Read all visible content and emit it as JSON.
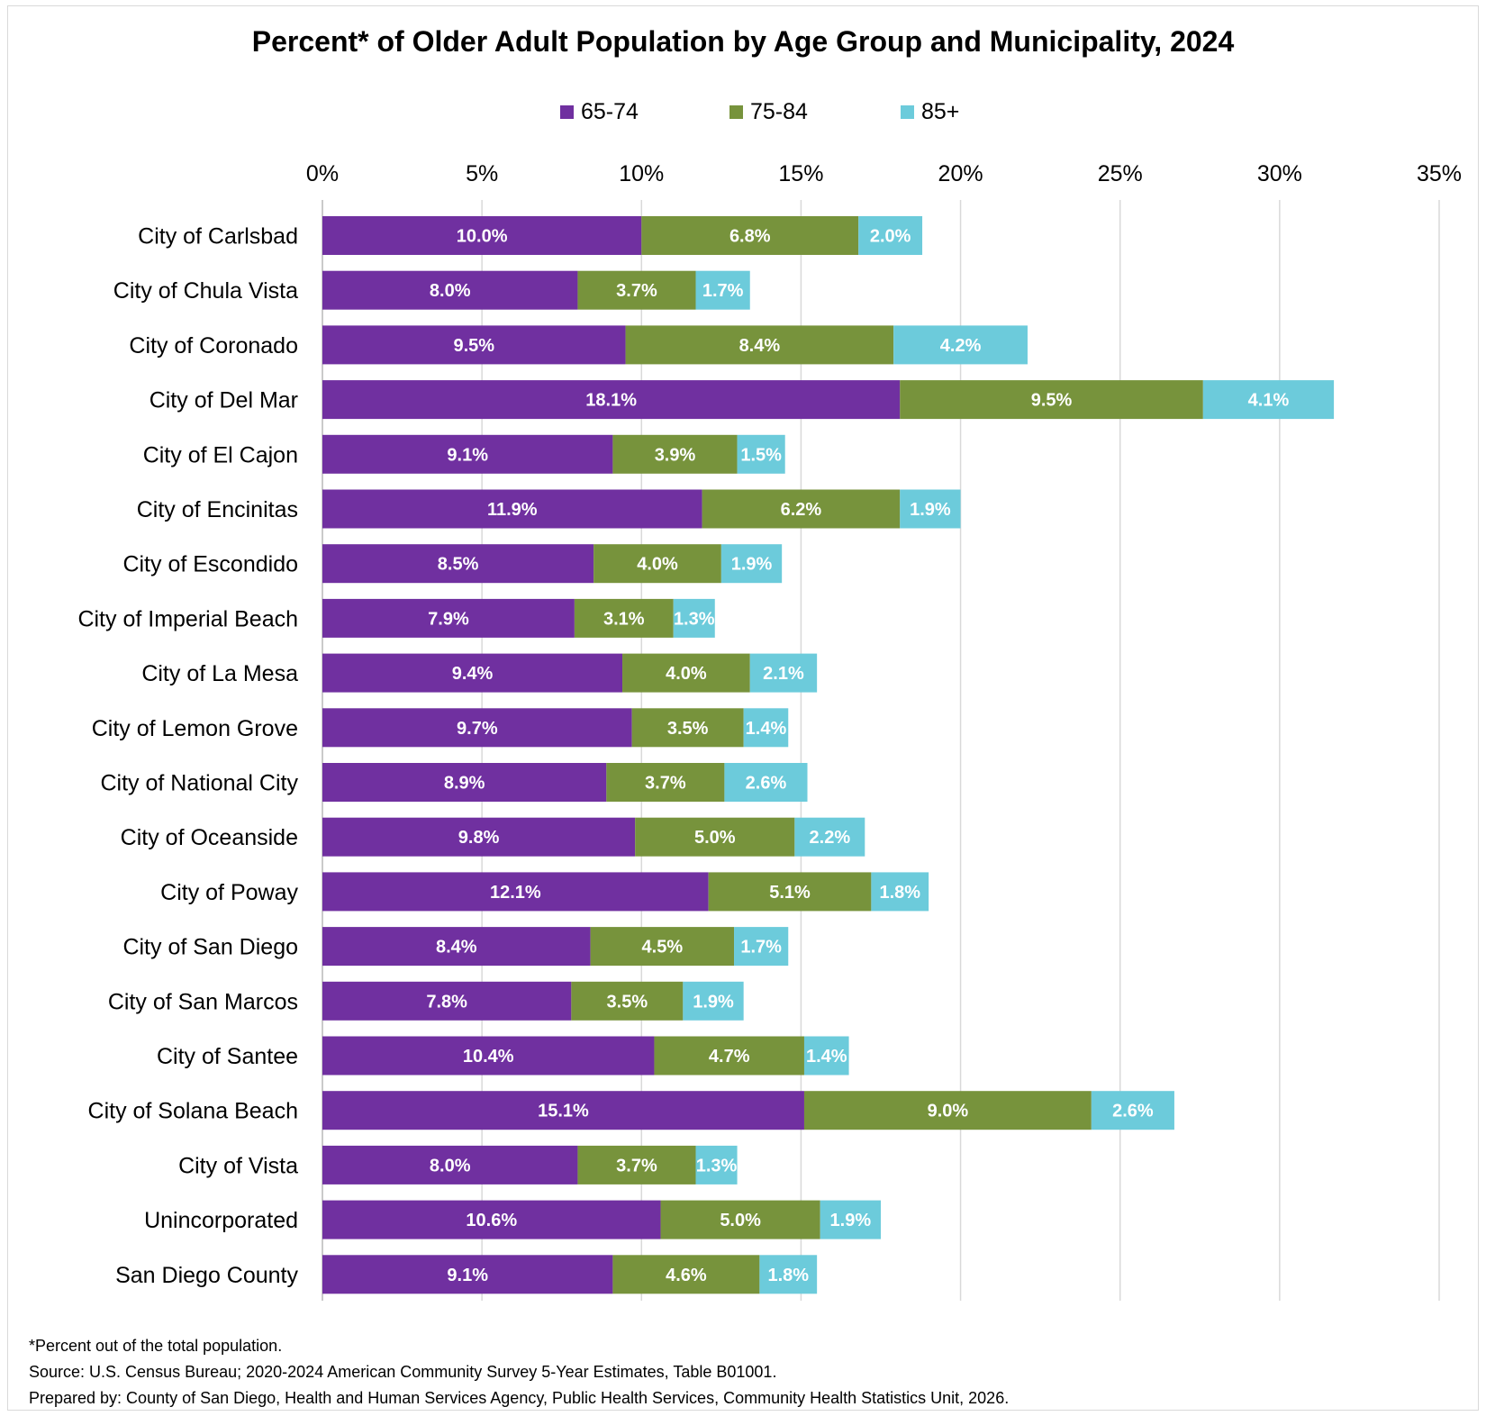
{
  "chart_data": {
    "type": "bar",
    "orientation": "horizontal",
    "stacked": true,
    "title": "Percent* of Older Adult Population by Age Group and Municipality, 2024",
    "categories": [
      "City of Carlsbad",
      "City of Chula Vista",
      "City of Coronado",
      "City of Del Mar",
      "City of El Cajon",
      "City of Encinitas",
      "City of Escondido",
      "City of Imperial Beach",
      "City of La Mesa",
      "City of Lemon Grove",
      "City of National City",
      "City of Oceanside",
      "City of Poway",
      "City of San Diego",
      "City of San Marcos",
      "City of Santee",
      "City of Solana Beach",
      "City of Vista",
      "Unincorporated",
      "San Diego County"
    ],
    "series": [
      {
        "name": "65-74",
        "color": "#7030a0",
        "values": [
          10.0,
          8.0,
          9.5,
          18.1,
          9.1,
          11.9,
          8.5,
          7.9,
          9.4,
          9.7,
          8.9,
          9.8,
          12.1,
          8.4,
          7.8,
          10.4,
          15.1,
          8.0,
          10.6,
          9.1
        ]
      },
      {
        "name": "75-84",
        "color": "#77933c",
        "values": [
          6.8,
          3.7,
          8.4,
          9.5,
          3.9,
          6.2,
          4.0,
          3.1,
          4.0,
          3.5,
          3.7,
          5.0,
          5.1,
          4.5,
          3.5,
          4.7,
          9.0,
          3.7,
          5.0,
          4.6
        ]
      },
      {
        "name": "85+",
        "color": "#6ccbdb",
        "values": [
          2.0,
          1.7,
          4.2,
          4.1,
          1.5,
          1.9,
          1.9,
          1.3,
          2.1,
          1.4,
          2.6,
          2.2,
          1.8,
          1.7,
          1.9,
          1.4,
          2.6,
          1.3,
          1.9,
          1.8
        ]
      }
    ],
    "xlim": [
      0,
      35
    ],
    "xticks": [
      "0%",
      "5%",
      "10%",
      "15%",
      "20%",
      "25%",
      "30%",
      "35%"
    ],
    "xaxis_position": "top",
    "grid": true,
    "legend_position": "top"
  },
  "notes": [
    "*Percent out of the total population.",
    "Source: U.S. Census Bureau; 2020-2024 American Community Survey 5-Year Estimates, Table B01001.",
    "Prepared by: County of San Diego, Health and Human Services Agency, Public Health Services, Community Health Statistics Unit, 2026."
  ]
}
